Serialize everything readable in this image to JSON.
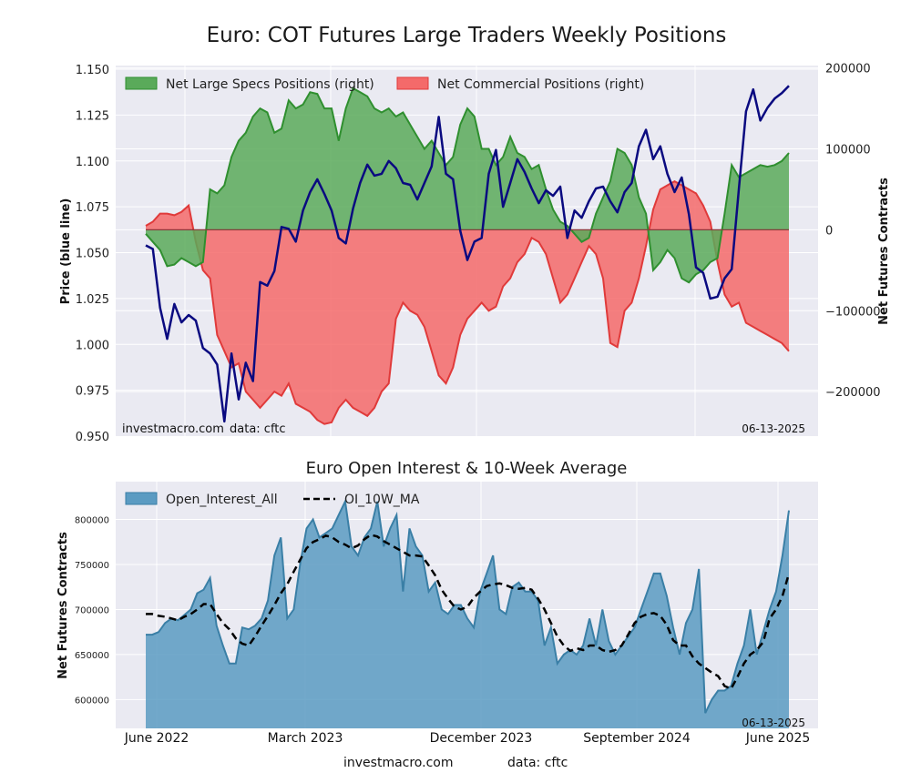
{
  "footer": {
    "site": "investmacro.com",
    "source": "data: cftc"
  },
  "colors": {
    "plot_bg": "#eaeaf2",
    "grid": "#ffffff",
    "specs_fill": "#5aaa5a",
    "specs_line": "#2f8f2f",
    "comm_fill": "#f46a6a",
    "comm_line": "#e03a3a",
    "price_line": "#0a0a80",
    "oi_fill": "#5b9bc2",
    "oi_line": "#3a7fa6",
    "ma_line": "#000000"
  },
  "chart_data": [
    {
      "type": "area",
      "title": "Euro: COT Futures Large Traders Weekly Positions",
      "ylabel_left": "Price (blue line)",
      "ylabel_right": "Net Futures Contracts",
      "ylim_left": [
        0.95,
        1.152
      ],
      "ylim_right": [
        -255000,
        203000
      ],
      "yticks_left": [
        "1.150",
        "1.125",
        "1.100",
        "1.075",
        "1.050",
        "1.025",
        "1.000",
        "0.975",
        "0.950"
      ],
      "yticks_right": [
        "200000",
        "100000",
        "0",
        "−100000",
        "−200000"
      ],
      "legend": [
        "Net Large Specs Positions (right)",
        "Net Commercial Positions (right)"
      ],
      "legend_position": "top-left",
      "watermark": "investmacro.com",
      "source_note": "data: cftc",
      "date_label": "06-13-2025",
      "series": [
        {
          "name": "Net Large Specs Positions (right)",
          "values": [
            -5000,
            -15000,
            -25000,
            -45000,
            -43000,
            -35000,
            -40000,
            -45000,
            -40000,
            50000,
            45000,
            55000,
            90000,
            110000,
            120000,
            140000,
            150000,
            145000,
            120000,
            125000,
            160000,
            150000,
            155000,
            170000,
            168000,
            150000,
            150000,
            110000,
            150000,
            175000,
            170000,
            165000,
            150000,
            145000,
            150000,
            140000,
            145000,
            130000,
            115000,
            100000,
            110000,
            95000,
            80000,
            90000,
            130000,
            150000,
            140000,
            100000,
            100000,
            80000,
            90000,
            115000,
            95000,
            90000,
            75000,
            80000,
            50000,
            25000,
            10000,
            5000,
            -5000,
            -15000,
            -10000,
            20000,
            40000,
            60000,
            100000,
            95000,
            80000,
            40000,
            20000,
            -50000,
            -40000,
            -25000,
            -35000,
            -60000,
            -65000,
            -55000,
            -50000,
            -40000,
            -35000,
            20000,
            80000,
            65000,
            70000,
            75000,
            80000,
            78000,
            80000,
            85000,
            95000
          ]
        },
        {
          "name": "Net Commercial Positions (right)",
          "values": [
            5000,
            10000,
            20000,
            20000,
            18000,
            22000,
            30000,
            -15000,
            -50000,
            -60000,
            -130000,
            -150000,
            -170000,
            -165000,
            -200000,
            -210000,
            -220000,
            -210000,
            -200000,
            -205000,
            -190000,
            -215000,
            -220000,
            -225000,
            -235000,
            -240000,
            -238000,
            -220000,
            -210000,
            -220000,
            -225000,
            -230000,
            -220000,
            -200000,
            -190000,
            -110000,
            -90000,
            -100000,
            -105000,
            -120000,
            -150000,
            -180000,
            -190000,
            -170000,
            -130000,
            -110000,
            -100000,
            -90000,
            -100000,
            -95000,
            -70000,
            -60000,
            -40000,
            -30000,
            -10000,
            -15000,
            -30000,
            -60000,
            -90000,
            -80000,
            -60000,
            -40000,
            -20000,
            -30000,
            -60000,
            -140000,
            -145000,
            -100000,
            -90000,
            -60000,
            -20000,
            25000,
            50000,
            55000,
            60000,
            55000,
            50000,
            45000,
            30000,
            10000,
            -40000,
            -80000,
            -95000,
            -90000,
            -115000,
            -120000,
            -125000,
            -130000,
            -135000,
            -140000,
            -150000
          ]
        },
        {
          "name": "Price (blue line)",
          "values": [
            1.054,
            1.052,
            1.02,
            1.003,
            1.022,
            1.012,
            1.016,
            1.013,
            0.998,
            0.995,
            0.989,
            0.958,
            0.995,
            0.97,
            0.99,
            0.98,
            1.034,
            1.032,
            1.04,
            1.064,
            1.063,
            1.056,
            1.073,
            1.083,
            1.09,
            1.082,
            1.073,
            1.058,
            1.055,
            1.074,
            1.088,
            1.098,
            1.092,
            1.093,
            1.1,
            1.096,
            1.088,
            1.087,
            1.079,
            1.088,
            1.097,
            1.124,
            1.093,
            1.09,
            1.062,
            1.046,
            1.056,
            1.058,
            1.093,
            1.106,
            1.075,
            1.088,
            1.101,
            1.094,
            1.085,
            1.077,
            1.084,
            1.081,
            1.086,
            1.058,
            1.073,
            1.069,
            1.078,
            1.085,
            1.086,
            1.078,
            1.072,
            1.083,
            1.088,
            1.108,
            1.117,
            1.101,
            1.108,
            1.093,
            1.083,
            1.091,
            1.071,
            1.042,
            1.039,
            1.025,
            1.026,
            1.036,
            1.041,
            1.085,
            1.127,
            1.139,
            1.122,
            1.129,
            1.134,
            1.137,
            1.141
          ]
        }
      ]
    },
    {
      "type": "area",
      "title": "Euro Open Interest & 10-Week Average",
      "ylabel": "Net Futures Contracts",
      "ylim": [
        568000,
        842000
      ],
      "yticks": [
        "800000",
        "750000",
        "700000",
        "650000",
        "600000"
      ],
      "xticks": [
        "June 2022",
        "March 2023",
        "December 2023",
        "September 2024",
        "June 2025"
      ],
      "legend": [
        "Open_Interest_All",
        "OI_10W_MA"
      ],
      "legend_position": "top-left",
      "date_label": "06-13-2025",
      "series": [
        {
          "name": "Open_Interest_All",
          "values": [
            672000,
            672000,
            675000,
            685000,
            690000,
            688000,
            694000,
            700000,
            718000,
            722000,
            735000,
            682000,
            660000,
            640000,
            640000,
            680000,
            678000,
            682000,
            690000,
            710000,
            760000,
            780000,
            690000,
            700000,
            750000,
            790000,
            800000,
            780000,
            785000,
            790000,
            805000,
            820000,
            770000,
            760000,
            780000,
            790000,
            820000,
            770000,
            790000,
            805000,
            720000,
            790000,
            770000,
            760000,
            720000,
            730000,
            700000,
            695000,
            705000,
            705000,
            690000,
            680000,
            720000,
            740000,
            760000,
            700000,
            695000,
            725000,
            730000,
            720000,
            720000,
            710000,
            660000,
            680000,
            640000,
            650000,
            655000,
            650000,
            660000,
            690000,
            660000,
            700000,
            665000,
            650000,
            660000,
            670000,
            680000,
            700000,
            720000,
            740000,
            740000,
            715000,
            680000,
            650000,
            685000,
            700000,
            745000,
            585000,
            600000,
            610000,
            610000,
            615000,
            640000,
            660000,
            700000,
            650000,
            675000,
            700000,
            720000,
            760000,
            810000
          ]
        },
        {
          "name": "OI_10W_MA",
          "values": [
            695000,
            695000,
            693000,
            692000,
            690000,
            688000,
            692000,
            695000,
            700000,
            706000,
            706000,
            695000,
            685000,
            678000,
            668000,
            662000,
            660000,
            670000,
            682000,
            693000,
            705000,
            718000,
            728000,
            742000,
            755000,
            768000,
            775000,
            778000,
            782000,
            780000,
            775000,
            772000,
            768000,
            771000,
            778000,
            783000,
            781000,
            776000,
            772000,
            768000,
            764000,
            760000,
            760000,
            759000,
            749000,
            738000,
            722000,
            712000,
            703000,
            700000,
            703000,
            713000,
            720000,
            726000,
            728000,
            729000,
            727000,
            724000,
            723000,
            724000,
            722000,
            712000,
            700000,
            685000,
            670000,
            660000,
            654000,
            657000,
            655000,
            660000,
            660000,
            655000,
            653000,
            655000,
            660000,
            672000,
            685000,
            692000,
            695000,
            696000,
            693000,
            683000,
            666000,
            660000,
            660000,
            648000,
            640000,
            635000,
            630000,
            626000,
            615000,
            612000,
            625000,
            640000,
            650000,
            655000,
            664000,
            690000,
            700000,
            715000,
            740000
          ]
        }
      ]
    }
  ]
}
